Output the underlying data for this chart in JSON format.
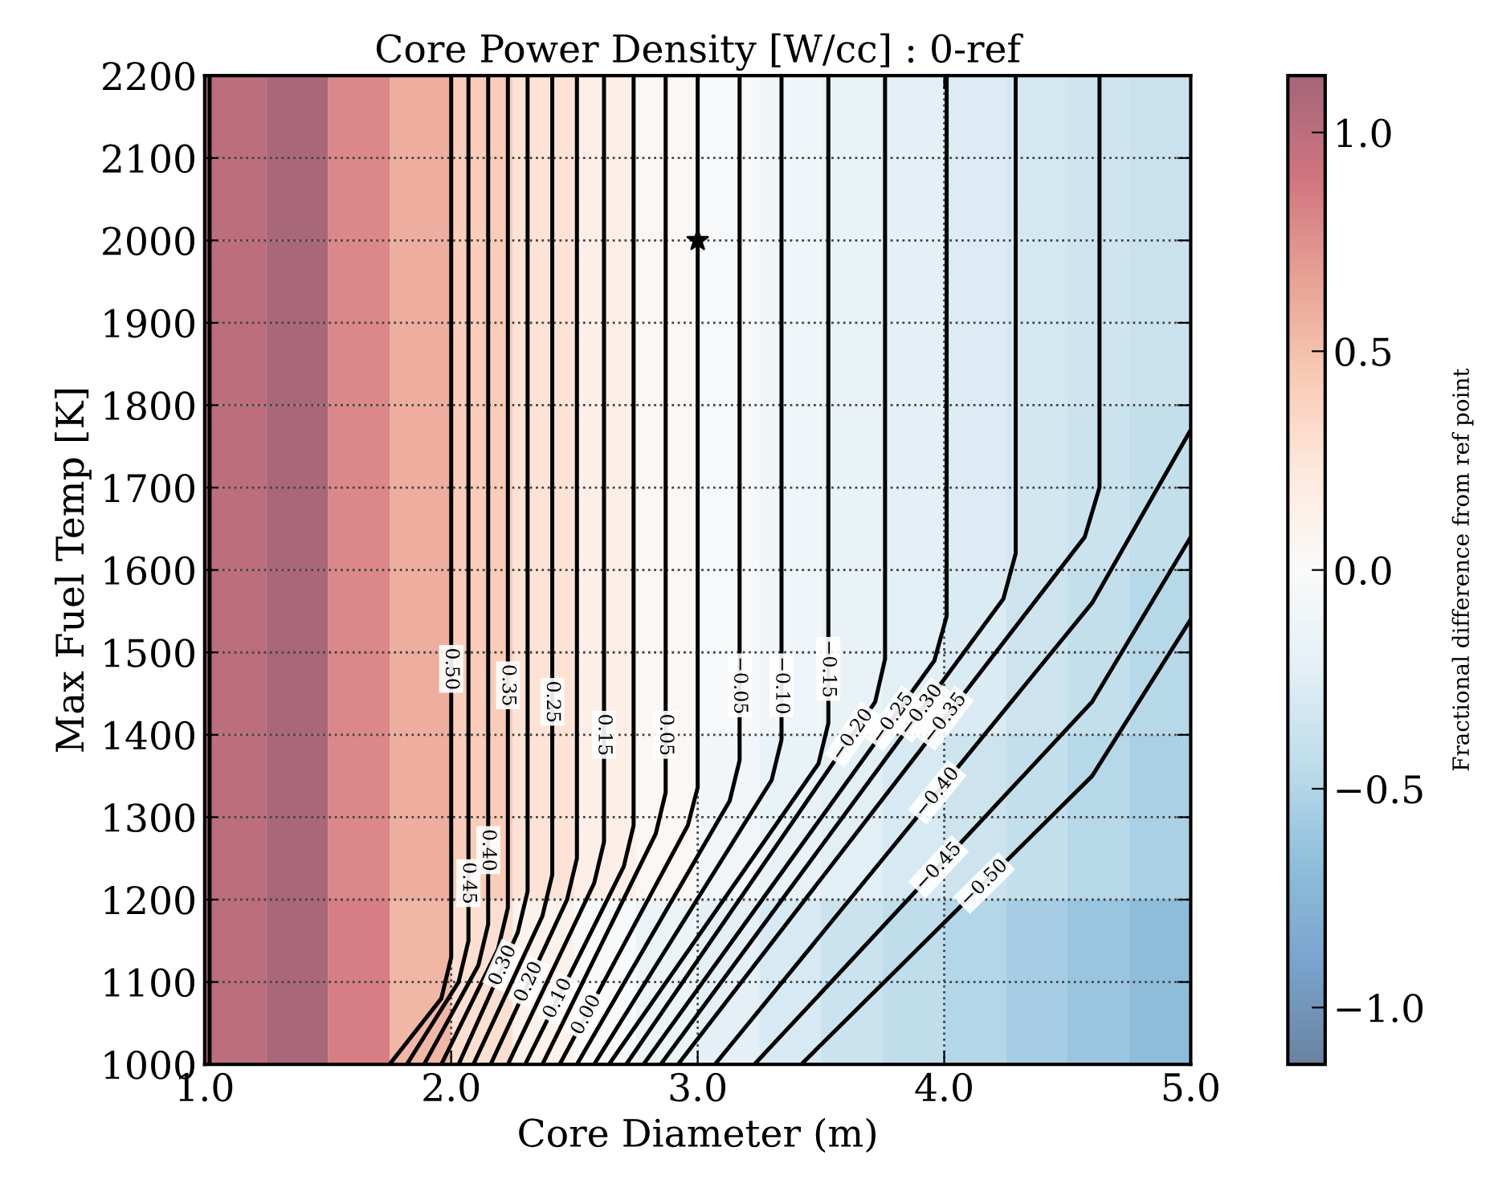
{
  "chart_data": {
    "type": "heatmap",
    "title": "Core Power Density [W/cc] : 0-ref",
    "xlabel": "Core Diameter (m)",
    "ylabel": "Max Fuel Temp [K]",
    "clabel": "Fractional difference from ref point",
    "x": [
      1.125,
      1.375,
      1.625,
      1.875,
      2.125,
      2.375,
      2.625,
      2.875,
      3.125,
      3.375,
      3.625,
      3.875,
      4.125,
      4.375,
      4.625,
      4.875
    ],
    "y": [
      2100,
      1900,
      1700,
      1500,
      1300,
      1100
    ],
    "cells": [
      [
        1.0,
        1.1,
        0.8,
        0.6,
        0.42,
        0.27,
        0.15,
        0.05,
        -0.04,
        -0.11,
        -0.17,
        -0.22,
        -0.26,
        -0.31,
        -0.35,
        -0.38
      ],
      [
        1.0,
        1.1,
        0.8,
        0.6,
        0.42,
        0.27,
        0.15,
        0.05,
        -0.04,
        -0.11,
        -0.17,
        -0.22,
        -0.26,
        -0.31,
        -0.35,
        -0.38
      ],
      [
        1.0,
        1.1,
        0.8,
        0.6,
        0.42,
        0.27,
        0.15,
        0.05,
        -0.04,
        -0.11,
        -0.17,
        -0.22,
        -0.26,
        -0.32,
        -0.37,
        -0.42
      ],
      [
        1.0,
        1.1,
        0.8,
        0.6,
        0.42,
        0.27,
        0.15,
        0.05,
        -0.04,
        -0.11,
        -0.17,
        -0.23,
        -0.28,
        -0.36,
        -0.42,
        -0.48
      ],
      [
        1.0,
        1.1,
        0.8,
        0.6,
        0.42,
        0.27,
        0.15,
        0.04,
        -0.08,
        -0.16,
        -0.23,
        -0.3,
        -0.36,
        -0.42,
        -0.48,
        -0.54
      ],
      [
        1.0,
        1.1,
        0.85,
        0.55,
        0.3,
        0.12,
        -0.02,
        -0.13,
        -0.22,
        -0.3,
        -0.37,
        -0.44,
        -0.5,
        -0.56,
        -0.62,
        -0.68
      ]
    ],
    "clim": [
      -1.13,
      1.13
    ],
    "cticks": [
      {
        "value": 1.0,
        "label": "1.0"
      },
      {
        "value": 0.5,
        "label": "0.5"
      },
      {
        "value": 0.0,
        "label": "0.0"
      },
      {
        "value": -0.5,
        "label": "−0.5"
      },
      {
        "value": -1.0,
        "label": "−1.0"
      }
    ],
    "xlim": [
      1.0,
      5.0
    ],
    "ylim": [
      1000,
      2200
    ],
    "xticks": [
      {
        "value": 1.0,
        "label": "1.0"
      },
      {
        "value": 2.0,
        "label": "2.0"
      },
      {
        "value": 3.0,
        "label": "3.0"
      },
      {
        "value": 4.0,
        "label": "4.0"
      },
      {
        "value": 5.0,
        "label": "5.0"
      }
    ],
    "yticks": [
      1000,
      1100,
      1200,
      1300,
      1400,
      1500,
      1600,
      1700,
      1800,
      1900,
      2000,
      2100,
      2200
    ],
    "grid": true,
    "series": [
      {
        "type": "line",
        "color": "#000000",
        "x": [
          1.02,
          1.02
        ],
        "values": [
          1000,
          2200
        ]
      },
      {
        "type": "line",
        "color": "#000000",
        "x": [
          2.0,
          2.0,
          1.96,
          1.75
        ],
        "values": [
          2200,
          1130,
          1080,
          1000
        ]
      },
      {
        "type": "line",
        "color": "#000000",
        "x": [
          2.07,
          2.07,
          2.03,
          1.82
        ],
        "values": [
          2200,
          1150,
          1100,
          1000
        ]
      },
      {
        "type": "line",
        "color": "#000000",
        "x": [
          2.15,
          2.15,
          2.11,
          1.89
        ],
        "values": [
          2200,
          1170,
          1120,
          1000
        ]
      },
      {
        "type": "line",
        "color": "#000000",
        "x": [
          2.23,
          2.23,
          2.19,
          1.96
        ],
        "values": [
          2200,
          1190,
          1140,
          1000
        ]
      },
      {
        "type": "line",
        "color": "#000000",
        "x": [
          2.31,
          2.31,
          2.27,
          2.03
        ],
        "values": [
          2200,
          1210,
          1160,
          1000
        ]
      },
      {
        "type": "line",
        "color": "#000000",
        "x": [
          2.41,
          2.41,
          2.37,
          2.09
        ],
        "values": [
          2200,
          1230,
          1180,
          1000
        ]
      },
      {
        "type": "line",
        "color": "#000000",
        "x": [
          2.51,
          2.51,
          2.47,
          2.16
        ],
        "values": [
          2200,
          1250,
          1200,
          1000
        ]
      },
      {
        "type": "line",
        "color": "#000000",
        "x": [
          2.62,
          2.62,
          2.58,
          2.23
        ],
        "values": [
          2200,
          1270,
          1220,
          1000
        ]
      },
      {
        "type": "line",
        "color": "#000000",
        "x": [
          2.74,
          2.74,
          2.7,
          2.3
        ],
        "values": [
          2200,
          1290,
          1240,
          1000
        ]
      },
      {
        "type": "line",
        "color": "#000000",
        "x": [
          2.87,
          2.87,
          2.83,
          2.37
        ],
        "values": [
          2200,
          1330,
          1280,
          1000
        ]
      },
      {
        "type": "line",
        "color": "#000000",
        "x": [
          3.0,
          3.0,
          2.96,
          2.44
        ],
        "values": [
          2200,
          1336,
          1290,
          1000
        ]
      },
      {
        "type": "line",
        "color": "#000000",
        "x": [
          3.17,
          3.17,
          3.13,
          2.51
        ],
        "values": [
          2200,
          1369,
          1320,
          1000
        ]
      },
      {
        "type": "line",
        "color": "#000000",
        "x": [
          3.34,
          3.34,
          3.3,
          2.58
        ],
        "values": [
          2200,
          1394,
          1345,
          1000
        ]
      },
      {
        "type": "line",
        "color": "#000000",
        "x": [
          3.53,
          3.53,
          3.49,
          2.64
        ],
        "values": [
          2200,
          1414,
          1365,
          1000
        ]
      },
      {
        "type": "line",
        "color": "#000000",
        "x": [
          3.76,
          3.76,
          3.72,
          2.71
        ],
        "values": [
          2200,
          1492,
          1440,
          1000
        ]
      },
      {
        "type": "line",
        "color": "#000000",
        "x": [
          4.01,
          4.01,
          3.96,
          2.78
        ],
        "values": [
          2200,
          1544,
          1490,
          1000
        ]
      },
      {
        "type": "line",
        "color": "#000000",
        "x": [
          4.29,
          4.29,
          4.24,
          2.85
        ],
        "values": [
          2200,
          1620,
          1565,
          1000
        ]
      },
      {
        "type": "line",
        "color": "#000000",
        "x": [
          4.63,
          4.63,
          4.57,
          2.92
        ],
        "values": [
          2200,
          1700,
          1640,
          1000
        ]
      },
      {
        "type": "line",
        "color": "#000000",
        "x": [
          5.0,
          4.6,
          3.07
        ],
        "values": [
          1770,
          1560,
          1000
        ]
      },
      {
        "type": "line",
        "color": "#000000",
        "x": [
          5.0,
          4.6,
          3.23
        ],
        "values": [
          1640,
          1440,
          1000
        ]
      },
      {
        "type": "line",
        "color": "#000000",
        "x": [
          5.0,
          4.6,
          3.42
        ],
        "values": [
          1540,
          1350,
          1000
        ]
      },
      {
        "type": "scatter",
        "color": "#000000",
        "marker": "star",
        "x": [
          3.0
        ],
        "values": [
          2000
        ]
      }
    ],
    "annotations": [
      {
        "text": "0.50",
        "x": 2.0,
        "y": 1480
      },
      {
        "text": "0.45",
        "x": 2.07,
        "y": 1220
      },
      {
        "text": "0.40",
        "x": 2.15,
        "y": 1260
      },
      {
        "text": "0.35",
        "x": 2.23,
        "y": 1460
      },
      {
        "text": "0.30",
        "x": 2.21,
        "y": 1120
      },
      {
        "text": "0.25",
        "x": 2.41,
        "y": 1440
      },
      {
        "text": "0.20",
        "x": 2.315,
        "y": 1100
      },
      {
        "text": "0.15",
        "x": 2.62,
        "y": 1400
      },
      {
        "text": "0.10",
        "x": 2.433,
        "y": 1080
      },
      {
        "text": "0.05",
        "x": 2.87,
        "y": 1400
      },
      {
        "text": "0.00",
        "x": 2.548,
        "y": 1060
      },
      {
        "text": "−0.05",
        "x": 3.17,
        "y": 1460
      },
      {
        "text": "−0.10",
        "x": 3.34,
        "y": 1460
      },
      {
        "text": "−0.15",
        "x": 3.53,
        "y": 1480
      },
      {
        "text": "−0.20",
        "x": 3.628,
        "y": 1400
      },
      {
        "text": "−0.25",
        "x": 3.791,
        "y": 1420
      },
      {
        "text": "−0.30",
        "x": 3.908,
        "y": 1430
      },
      {
        "text": "−0.35",
        "x": 4.003,
        "y": 1420
      },
      {
        "text": "−0.40",
        "x": 3.972,
        "y": 1330
      },
      {
        "text": "−0.45",
        "x": 3.977,
        "y": 1240
      },
      {
        "text": "−0.50",
        "x": 4.162,
        "y": 1220
      }
    ]
  }
}
